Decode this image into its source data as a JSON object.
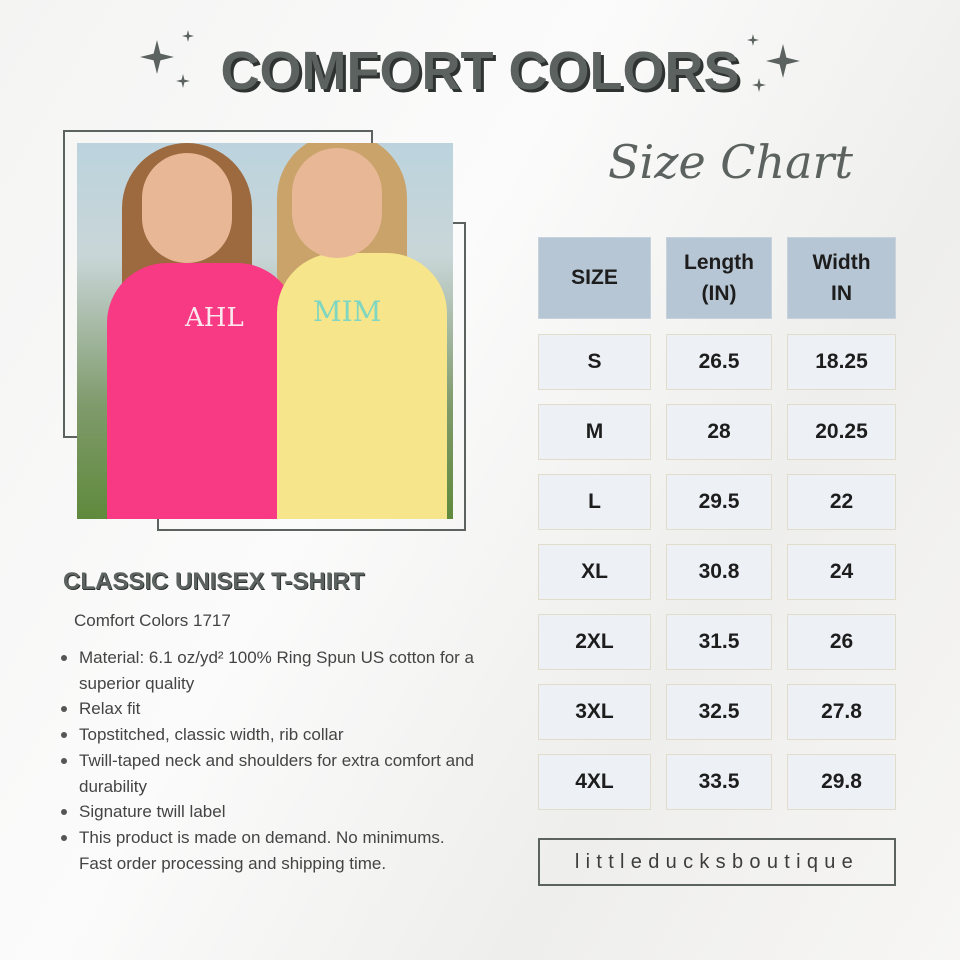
{
  "title": "COMFORT COLORS",
  "size_chart_heading": "Size Chart",
  "product": {
    "name": "CLASSIC UNISEX T-SHIRT",
    "model": "Comfort Colors 1717",
    "features": [
      "Material: 6.1 oz/yd² 100% Ring Spun US cotton for a superior quality",
      "Relax fit",
      "Topstitched, classic width, rib collar",
      "Twill-taped neck and shoulders for extra comfort and durability",
      "Signature twill label",
      "This product is made on demand. No minimums. Fast order processing and shipping time."
    ]
  },
  "table": {
    "headers": [
      "SIZE",
      "Length (IN)",
      "Width IN"
    ],
    "rows": [
      [
        "S",
        "26.5",
        "18.25"
      ],
      [
        "M",
        "28",
        "20.25"
      ],
      [
        "L",
        "29.5",
        "22"
      ],
      [
        "XL",
        "30.8",
        "24"
      ],
      [
        "2XL",
        "31.5",
        "26"
      ],
      [
        "3XL",
        "32.5",
        "27.8"
      ],
      [
        "4XL",
        "33.5",
        "29.8"
      ]
    ]
  },
  "brand": "littleducksboutique",
  "photo": {
    "monograms": [
      "AHL",
      "MIM"
    ]
  },
  "colors": {
    "accent": "#5b625f",
    "header_cell": "#b7c6d4",
    "body_cell": "#edf1f6",
    "pink_shirt": "#f73a83",
    "yellow_shirt": "#f6e58a"
  }
}
